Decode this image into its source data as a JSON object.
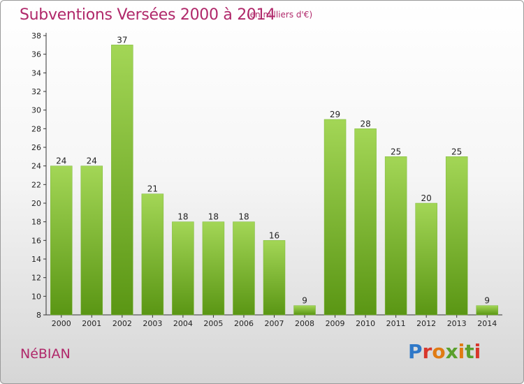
{
  "header": {
    "title": "Subventions Versées 2000 à 2014",
    "subtitle": "(en milliers d'€)"
  },
  "footer": {
    "commune": "NéBIAN",
    "logo": "Proxiti"
  },
  "colors": {
    "title": "#b0286a",
    "bar_light": "#9ed24e",
    "bar_dark": "#5e9a16",
    "axis": "#333333"
  },
  "chart_data": {
    "type": "bar",
    "title": "Subventions Versées 2000 à 2014",
    "subtitle": "(en milliers d'€)",
    "xlabel": "",
    "ylabel": "",
    "categories": [
      "2000",
      "2001",
      "2002",
      "2003",
      "2004",
      "2005",
      "2006",
      "2007",
      "2008",
      "2009",
      "2010",
      "2011",
      "2012",
      "2013",
      "2014"
    ],
    "values": [
      24,
      24,
      37,
      21,
      18,
      18,
      18,
      16,
      9,
      29,
      28,
      25,
      20,
      25,
      9
    ],
    "ylim": [
      8,
      38
    ],
    "yticks": [
      8,
      10,
      12,
      14,
      16,
      18,
      20,
      22,
      24,
      26,
      28,
      30,
      32,
      34,
      36,
      38
    ],
    "grid": false,
    "legend": "none"
  }
}
